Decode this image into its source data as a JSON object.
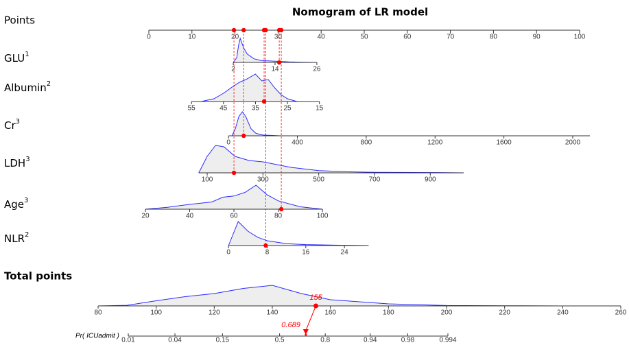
{
  "chart_data": {
    "type": "nomogram",
    "title": "Nomogram of LR model",
    "colors": {
      "density": "#2a2aff",
      "fill": "#eeeeee",
      "marker": "#ff0000",
      "axis": "#333333"
    },
    "points_axis": {
      "label": "Points",
      "xlim": [
        0,
        100
      ],
      "xticks": [
        0,
        10,
        20,
        30,
        40,
        50,
        60,
        70,
        80,
        90,
        100
      ]
    },
    "variables": [
      {
        "name": "GLU",
        "sup": "1",
        "xlim": [
          2,
          26
        ],
        "points_lim": [
          19.6,
          39.0
        ],
        "xticks": [
          2,
          14,
          26
        ],
        "patient": 15.2,
        "density": {
          "x": [
            2,
            3,
            3.5,
            4,
            5,
            6,
            8,
            10,
            14,
            18,
            22,
            26
          ],
          "y": [
            0,
            0.2,
            0.7,
            1,
            0.6,
            0.35,
            0.15,
            0.08,
            0.05,
            0.02,
            0.01,
            0
          ]
        }
      },
      {
        "name": "Albumin",
        "sup": "2",
        "xlim": [
          55,
          15
        ],
        "points_lim": [
          9.9,
          39.6
        ],
        "xticks": [
          55,
          45,
          35,
          25,
          15
        ],
        "patient": 32.3,
        "density": {
          "x": [
            52,
            48,
            45,
            42,
            40,
            38,
            35,
            33,
            31,
            29,
            27,
            25,
            22
          ],
          "y": [
            0,
            0.1,
            0.3,
            0.55,
            0.7,
            0.8,
            1,
            0.75,
            0.8,
            0.5,
            0.25,
            0.1,
            0
          ]
        }
      },
      {
        "name": "Cr",
        "sup": "3",
        "xlim": [
          0,
          2100
        ],
        "points_lim": [
          18.5,
          102.4
        ],
        "xticks": [
          0,
          400,
          800,
          1200,
          1600,
          2000
        ],
        "patient": 88,
        "density": {
          "x": [
            20,
            40,
            60,
            80,
            100,
            130,
            160,
            200,
            300
          ],
          "y": [
            0,
            0.3,
            0.8,
            1,
            0.8,
            0.3,
            0.1,
            0.03,
            0
          ]
        }
      },
      {
        "name": "LDH",
        "sup": "3",
        "xlim": [
          70,
          1020
        ],
        "points_lim": [
          11.6,
          73.1
        ],
        "xticks": [
          100,
          300,
          500,
          700,
          900
        ],
        "patient": 196,
        "density": {
          "x": [
            70,
            100,
            130,
            160,
            200,
            250,
            300,
            350,
            400,
            500,
            600,
            700,
            900,
            1020
          ],
          "y": [
            0,
            0.6,
            1,
            0.95,
            0.6,
            0.45,
            0.4,
            0.3,
            0.2,
            0.08,
            0.04,
            0.02,
            0.01,
            0
          ]
        }
      },
      {
        "name": "Age",
        "sup": "3",
        "xlim": [
          20,
          100
        ],
        "points_lim": [
          -0.8,
          40.3
        ],
        "xticks": [
          20,
          40,
          60,
          80,
          100
        ],
        "patient": 81.4,
        "density": {
          "x": [
            20,
            30,
            40,
            50,
            55,
            60,
            65,
            70,
            75,
            80,
            90,
            100
          ],
          "y": [
            0,
            0.08,
            0.2,
            0.3,
            0.5,
            0.55,
            0.7,
            1,
            0.6,
            0.35,
            0.1,
            0
          ]
        }
      },
      {
        "name": "NLR",
        "sup": "2",
        "xlim": [
          0,
          29
        ],
        "points_lim": [
          18.5,
          51.0
        ],
        "xticks": [
          0,
          8,
          16,
          24
        ],
        "patient": 7.7,
        "density": {
          "x": [
            0,
            1,
            2,
            3,
            4,
            6,
            8,
            12,
            16,
            24,
            29
          ],
          "y": [
            0,
            0.5,
            1,
            0.8,
            0.6,
            0.35,
            0.2,
            0.08,
            0.04,
            0.01,
            0
          ]
        }
      }
    ],
    "total_points": {
      "label": "Total points",
      "xlim": [
        80,
        260
      ],
      "xticks": [
        80,
        100,
        120,
        140,
        160,
        180,
        200,
        220,
        240,
        260
      ],
      "patient": 155,
      "density": {
        "x": [
          80,
          90,
          100,
          110,
          120,
          130,
          140,
          150,
          160,
          180,
          200,
          220,
          240
        ],
        "y": [
          0,
          0.03,
          0.25,
          0.45,
          0.6,
          0.85,
          1,
          0.6,
          0.3,
          0.1,
          0.02,
          0.01,
          0
        ]
      }
    },
    "probability": {
      "label": "Pr( ICUadmit )",
      "scale": "logit",
      "xlim": [
        0.01,
        0.994
      ],
      "xticks": [
        0.01,
        0.04,
        0.15,
        0.5,
        0.8,
        0.94,
        0.98,
        0.994
      ],
      "patient": 0.689
    }
  }
}
